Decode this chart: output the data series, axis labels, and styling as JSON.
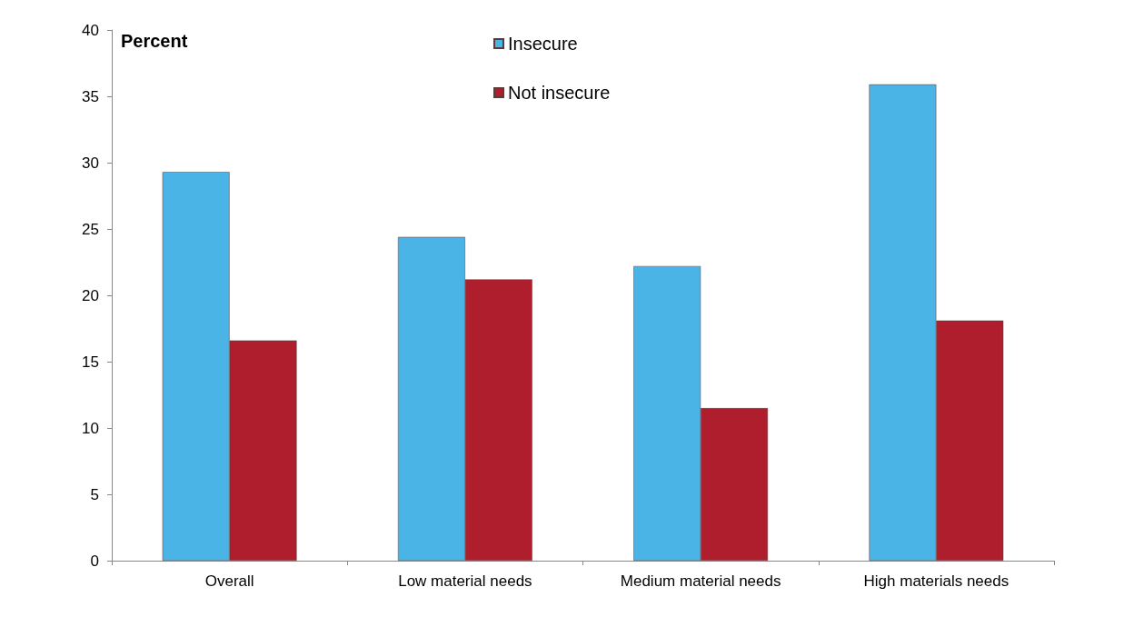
{
  "chart_data": {
    "type": "bar",
    "ylabel": "Percent",
    "categories": [
      "Overall",
      "Low material needs",
      "Medium material needs",
      "High materials needs"
    ],
    "series": [
      {
        "name": "Insecure",
        "color": "#4ab4e6",
        "values": [
          29.3,
          24.4,
          22.2,
          35.9
        ]
      },
      {
        "name": "Not insecure",
        "color": "#ae1e2d",
        "values": [
          16.6,
          21.2,
          11.5,
          18.1
        ]
      }
    ],
    "ylim": [
      0,
      40
    ],
    "yticks": [
      0,
      5,
      10,
      15,
      20,
      25,
      30,
      35,
      40
    ],
    "grid": false,
    "legend": "top"
  }
}
